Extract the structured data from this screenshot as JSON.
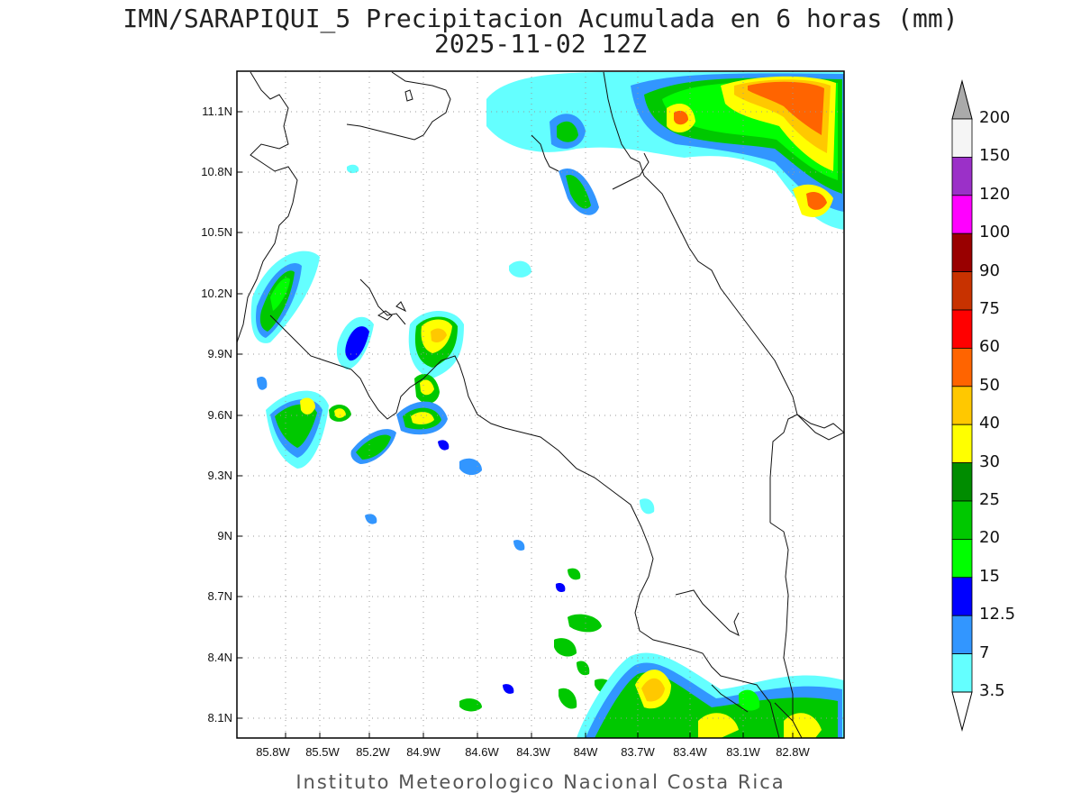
{
  "title_line1": "IMN/SARAPIQUI_5 Precipitacion Acumulada en 6 horas (mm)",
  "title_line2": "2025-11-02 12Z",
  "footer": "Instituto Meteorologico Nacional Costa Rica",
  "lat_labels": [
    "11.1N",
    "10.8N",
    "10.5N",
    "10.2N",
    "9.9N",
    "9.6N",
    "9.3N",
    "9N",
    "8.7N",
    "8.4N",
    "8.1N"
  ],
  "lon_labels": [
    "85.8W",
    "85.5W",
    "85.2W",
    "84.9W",
    "84.6W",
    "84.3W",
    "84W",
    "83.7W",
    "83.4W",
    "83.1W",
    "82.8W"
  ],
  "legend": {
    "values": [
      "200",
      "150",
      "120",
      "100",
      "90",
      "75",
      "60",
      "50",
      "40",
      "30",
      "25",
      "20",
      "15",
      "12.5",
      "7",
      "3.5"
    ],
    "colors": [
      "#f5f5f5",
      "#9b30c8",
      "#ff00ff",
      "#990000",
      "#c83200",
      "#ff0000",
      "#ff6400",
      "#ffc800",
      "#ffff00",
      "#008c00",
      "#00c800",
      "#00ff00",
      "#0000ff",
      "#3296ff",
      "#64ffff"
    ],
    "over_color": "#aaaaaa"
  }
}
